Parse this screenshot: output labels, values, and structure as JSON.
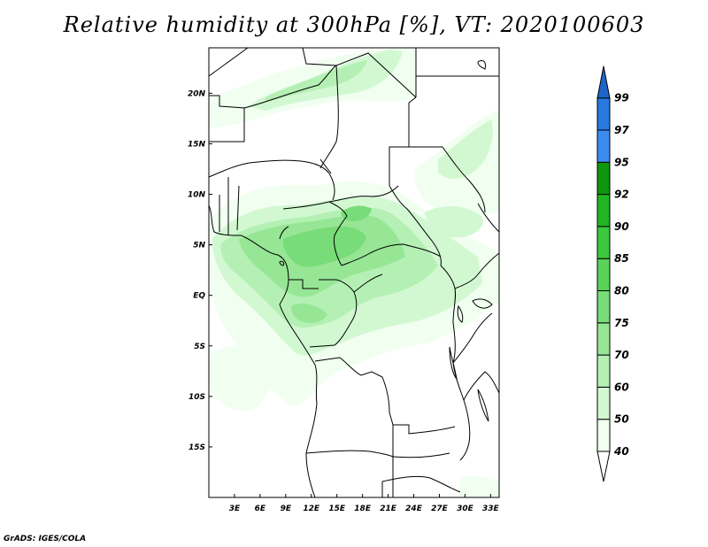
{
  "title": "Relative humidity at 300hPa [%], VT: 2020100603",
  "credit": "GrADS: IGES/COLA",
  "map": {
    "lon_range": [
      0,
      34
    ],
    "lat_range": [
      -20,
      24.5
    ],
    "lon_ticks": [
      {
        "value": 3,
        "label": "3E"
      },
      {
        "value": 6,
        "label": "6E"
      },
      {
        "value": 9,
        "label": "9E"
      },
      {
        "value": 12,
        "label": "12E"
      },
      {
        "value": 15,
        "label": "15E"
      },
      {
        "value": 18,
        "label": "18E"
      },
      {
        "value": 21,
        "label": "21E"
      },
      {
        "value": 24,
        "label": "24E"
      },
      {
        "value": 27,
        "label": "27E"
      },
      {
        "value": 30,
        "label": "30E"
      },
      {
        "value": 33,
        "label": "33E"
      }
    ],
    "lat_ticks": [
      {
        "value": 20,
        "label": "20N"
      },
      {
        "value": 15,
        "label": "15N"
      },
      {
        "value": 10,
        "label": "10N"
      },
      {
        "value": 5,
        "label": "5N"
      },
      {
        "value": 0,
        "label": "EQ"
      },
      {
        "value": -5,
        "label": "5S"
      },
      {
        "value": -10,
        "label": "10S"
      },
      {
        "value": -15,
        "label": "15S"
      }
    ]
  },
  "colorbar": {
    "levels": [
      "40",
      "50",
      "60",
      "70",
      "75",
      "80",
      "85",
      "90",
      "92",
      "95",
      "97",
      "99"
    ],
    "colors": [
      "#f0fff0",
      "#d2f8d2",
      "#b4f0b4",
      "#96e696",
      "#78dc78",
      "#5ad25a",
      "#3cc83c",
      "#23b423",
      "#0f960f",
      "#3c8cf0",
      "#2878e0",
      "#1e5ac8"
    ],
    "below_color": "#ffffff",
    "above_color": "#1e64c8"
  },
  "humidity_colors": {
    "c40": "#f0fff0",
    "c50": "#d2f8d2",
    "c60": "#b4f0b4",
    "c70": "#96e696",
    "c75": "#78dc78"
  }
}
